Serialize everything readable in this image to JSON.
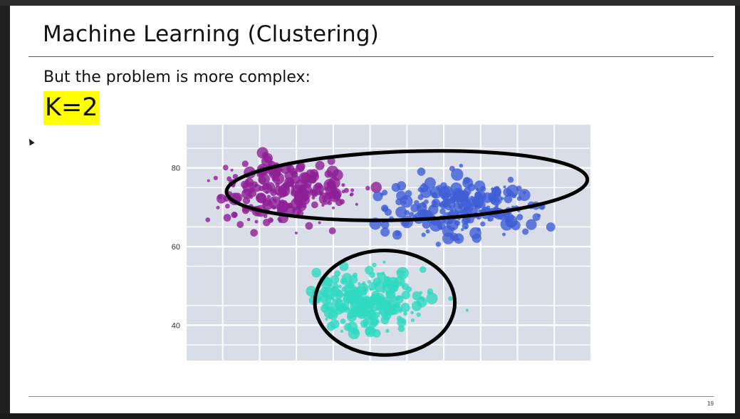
{
  "slide": {
    "title": "Machine Learning (Clustering)",
    "subtitle": "But the problem is more complex:",
    "k_label": "K=2",
    "page_number": "19"
  },
  "colors": {
    "plot_bg": "#d9dde8",
    "grid": "#ffffff",
    "highlight": "#ffff00",
    "cluster_purple": "#8e1f96",
    "cluster_blue": "#3f5ed6",
    "cluster_teal": "#2fd9c0",
    "outline": "#000000"
  },
  "chart_data": {
    "type": "scatter",
    "title": "",
    "xlabel": "",
    "ylabel": "",
    "y_ticks": [
      40,
      60,
      80
    ],
    "x_ticks": [],
    "ylim": [
      31,
      91
    ],
    "xlim": [
      0,
      11
    ],
    "grid": true,
    "series": [
      {
        "color": "#8e1f96",
        "center": [
          2.6,
          74
        ],
        "spread": [
          1.6,
          7
        ]
      },
      {
        "color": "#3f5ed6",
        "center": [
          7.5,
          70
        ],
        "spread": [
          1.8,
          7
        ]
      },
      {
        "color": "#2fd9c0",
        "center": [
          5.0,
          46
        ],
        "spread": [
          1.5,
          7
        ]
      }
    ],
    "annotations": [
      {
        "shape": "ellipse",
        "center": [
          6.0,
          75.5
        ],
        "radius": [
          4.9,
          8.7
        ]
      },
      {
        "shape": "circle",
        "center": [
          5.4,
          45.7
        ],
        "radius": [
          1.9,
          13.3
        ]
      }
    ]
  }
}
